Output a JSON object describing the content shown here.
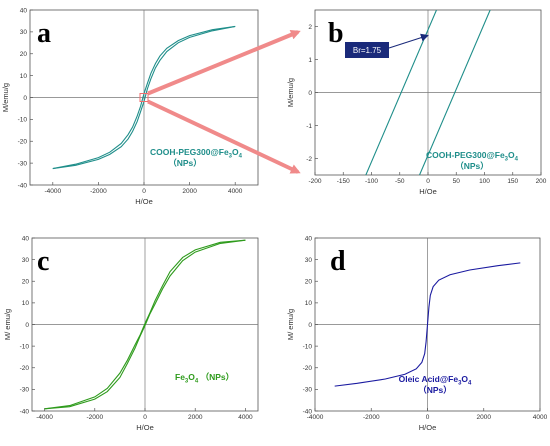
{
  "chart_data": [
    {
      "id": "a",
      "type": "line",
      "panel_label": "a",
      "xlabel": "H/Oe",
      "ylabel": "M/emu/g",
      "xlim": [
        -5000,
        5000
      ],
      "ylim": [
        -40,
        40
      ],
      "xticks": [
        -4000,
        -2000,
        0,
        2000,
        4000
      ],
      "yticks": [
        -40,
        -30,
        -20,
        -10,
        0,
        10,
        20,
        30,
        40
      ],
      "color": "#1f8e8a",
      "annotation": {
        "text": "COOH-PEG300@Fe",
        "sub": "3",
        "mid": "O",
        "sub2": "4",
        "line2": "（NPs）"
      },
      "series": [
        {
          "values_x": [
            -4000,
            -3000,
            -2000,
            -1500,
            -1000,
            -700,
            -500,
            -300,
            -150,
            0,
            150,
            300,
            500,
            700,
            1000,
            1500,
            2000,
            3000,
            4000
          ],
          "values_y": [
            -32.5,
            -30.5,
            -27.5,
            -25.0,
            -21.0,
            -17.0,
            -13.5,
            -8.5,
            -4.0,
            1.8,
            6.5,
            11.0,
            15.5,
            19.0,
            22.5,
            26.0,
            28.3,
            31.0,
            32.5
          ]
        },
        {
          "values_x": [
            -4000,
            -3000,
            -2000,
            -1500,
            -1000,
            -700,
            -500,
            -300,
            -150,
            0,
            150,
            300,
            500,
            700,
            1000,
            1500,
            2000,
            3000,
            4000
          ],
          "values_y": [
            -32.5,
            -31.0,
            -28.3,
            -26.0,
            -22.5,
            -19.0,
            -15.5,
            -11.0,
            -6.5,
            -1.8,
            4.0,
            8.5,
            13.5,
            17.0,
            21.0,
            25.0,
            27.5,
            30.5,
            32.5
          ]
        }
      ]
    },
    {
      "id": "b",
      "type": "line",
      "panel_label": "b",
      "xlabel": "H/Oe",
      "ylabel": "M/emu/g",
      "xlim": [
        -200,
        200
      ],
      "ylim": [
        -2.5,
        2.5
      ],
      "xticks": [
        -200,
        -150,
        -100,
        -50,
        0,
        50,
        100,
        150,
        200
      ],
      "yticks": [
        -2,
        -1,
        0,
        1,
        2
      ],
      "color": "#1f8e8a",
      "callout": "Br=1.75",
      "annotation": {
        "text": "COOH-PEG300@Fe",
        "sub": "3",
        "mid": "O",
        "sub2": "4",
        "line2": "（NPs）"
      },
      "series": [
        {
          "values_x": [
            -110,
            15
          ],
          "values_y": [
            -2.5,
            2.5
          ]
        },
        {
          "values_x": [
            -15,
            110
          ],
          "values_y": [
            -2.5,
            2.5
          ]
        }
      ]
    },
    {
      "id": "c",
      "type": "line",
      "panel_label": "c",
      "xlabel": "H/Oe",
      "ylabel": "M/ emu/g",
      "xlim": [
        -4500,
        4500
      ],
      "ylim": [
        -40,
        40
      ],
      "xticks": [
        -4000,
        -2000,
        0,
        2000,
        4000
      ],
      "yticks": [
        -40,
        -30,
        -20,
        -10,
        0,
        10,
        20,
        30,
        40
      ],
      "color": "#2e9b1c",
      "annotation": {
        "text": "Fe",
        "sub": "3",
        "mid": "O",
        "sub2": "4",
        "line2": "（NPs）",
        "inline": true
      },
      "series": [
        {
          "values_x": [
            -4000,
            -3000,
            -2000,
            -1500,
            -1000,
            -700,
            -400,
            -200,
            0,
            200,
            400,
            700,
            1000,
            1500,
            2000,
            3000,
            4000
          ],
          "values_y": [
            -39.0,
            -37.5,
            -33.5,
            -29.5,
            -22.5,
            -16.5,
            -9.5,
            -5.0,
            0.5,
            5.5,
            11.0,
            18.0,
            24.5,
            31.0,
            34.5,
            38.0,
            39.0
          ]
        },
        {
          "values_x": [
            -4000,
            -3000,
            -2000,
            -1500,
            -1000,
            -700,
            -400,
            -200,
            0,
            200,
            400,
            700,
            1000,
            1500,
            2000,
            3000,
            4000
          ],
          "values_y": [
            -39.0,
            -38.0,
            -34.5,
            -31.0,
            -24.5,
            -18.0,
            -11.0,
            -5.5,
            -0.5,
            5.0,
            9.5,
            16.5,
            22.5,
            29.5,
            33.5,
            37.5,
            39.0
          ]
        }
      ]
    },
    {
      "id": "d",
      "type": "line",
      "panel_label": "d",
      "xlabel": "H/Oe",
      "ylabel": "M/ emu/g",
      "xlim": [
        -4000,
        4000
      ],
      "ylim": [
        -40,
        40
      ],
      "xticks": [
        -4000,
        -2000,
        0,
        2000,
        4000
      ],
      "yticks": [
        -40,
        -30,
        -20,
        -10,
        0,
        10,
        20,
        30,
        40
      ],
      "color": "#1a1aa0",
      "annotation": {
        "text": "Oleic Acid@Fe",
        "sub": "3",
        "mid": "O",
        "sub2": "4",
        "line2": "（NPs）"
      },
      "series": [
        {
          "values_x": [
            -3300,
            -2500,
            -1500,
            -800,
            -400,
            -200,
            -100,
            -50,
            0,
            50,
            100,
            200,
            400,
            800,
            1500,
            2500,
            3300
          ],
          "values_y": [
            -28.5,
            -27.2,
            -25.2,
            -23.0,
            -20.5,
            -17.5,
            -13.5,
            -8.0,
            0,
            8.0,
            13.5,
            17.5,
            20.5,
            23.0,
            25.2,
            27.2,
            28.5
          ]
        }
      ]
    }
  ]
}
